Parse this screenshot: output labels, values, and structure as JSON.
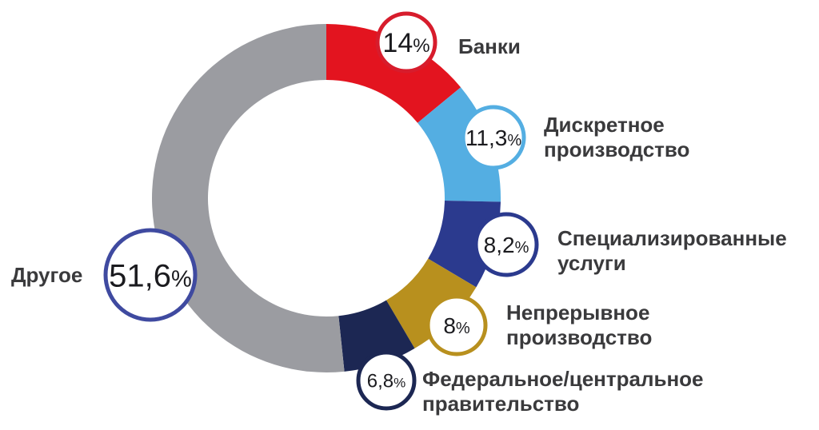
{
  "chart_data": {
    "type": "pie",
    "style": "donut",
    "categories": [
      "Банки",
      "Дискретное производство",
      "Специализированные услуги",
      "Непрерывное производство",
      "Федеральное/центральное правительство",
      "Другое"
    ],
    "values": [
      14,
      11.3,
      8.2,
      8,
      6.8,
      51.6
    ],
    "value_labels": [
      "14",
      "11,3",
      "8,2",
      "8",
      "6,8",
      "51,6"
    ],
    "label_lines": [
      [
        "Банки"
      ],
      [
        "Дискретное",
        "производство"
      ],
      [
        "Специализированные",
        "услуги"
      ],
      [
        "Непрерывное",
        "производство"
      ],
      [
        "Федеральное/центральное",
        "правительство"
      ],
      [
        "Другое"
      ]
    ],
    "unit": "%",
    "colors": [
      "#e3141f",
      "#54aee2",
      "#2b3a8e",
      "#b8901e",
      "#1c2753",
      "#9b9ca1"
    ],
    "badge_ring_colors": [
      "#d71c2c",
      "#54aee2",
      "#2b3a8e",
      "#b8901e",
      "#1c2753",
      "#3f4aa0"
    ],
    "legend": "none"
  }
}
